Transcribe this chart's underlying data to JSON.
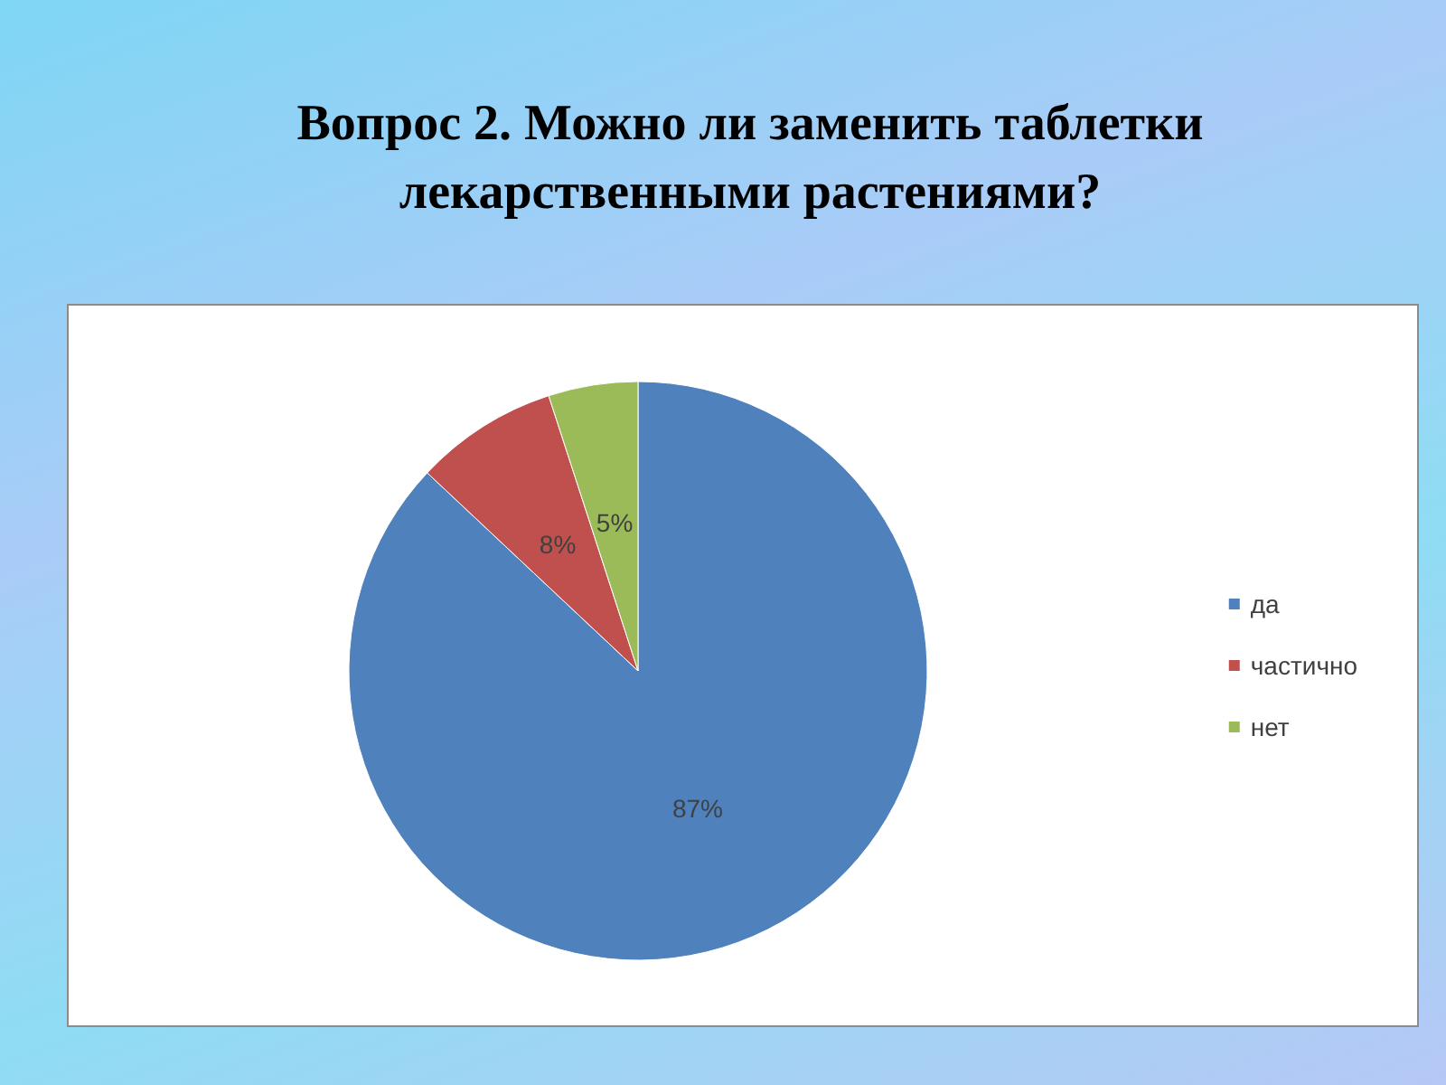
{
  "chart_data": {
    "type": "pie",
    "title": "Вопрос 2. Можно ли заменить таблетки лекарственными растениями?",
    "categories": [
      "да",
      "частично",
      "нет"
    ],
    "values": [
      87,
      8,
      5
    ],
    "value_labels": [
      "87%",
      "8%",
      "5%"
    ],
    "colors": [
      "#4f81bd",
      "#c0504d",
      "#9bbb59"
    ],
    "legend": "right"
  }
}
